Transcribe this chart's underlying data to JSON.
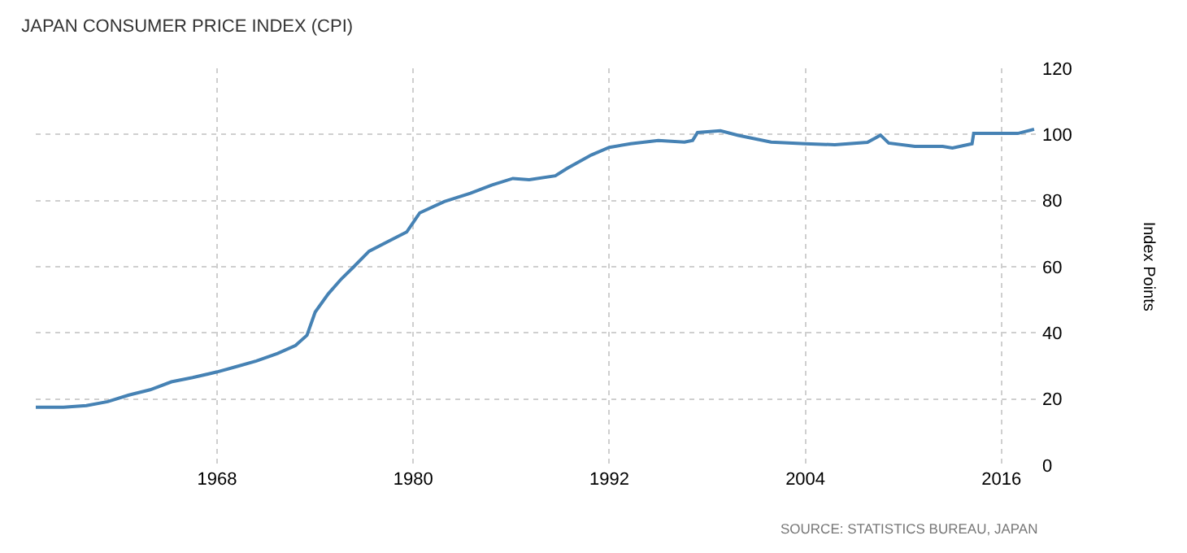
{
  "chart_data": {
    "type": "line",
    "title": "JAPAN CONSUMER PRICE INDEX (CPI)",
    "ylabel": "Index Points",
    "annotations": [
      "SOURCE: STATISTICS BUREAU, JAPAN"
    ],
    "x": [
      1956.9,
      1958.6,
      1960,
      1961.3,
      1962.6,
      1963.9,
      1965.2,
      1966.5,
      1968,
      1969.1,
      1970.4,
      1971.7,
      1972.8,
      1973.5,
      1974,
      1974.8,
      1975.6,
      1976.3,
      1977.3,
      1978.6,
      1979.6,
      1980.4,
      1981.9,
      1983.5,
      1984.8,
      1986.1,
      1987.1,
      1988.7,
      1989.4,
      1990.9,
      1992,
      1993.3,
      1995,
      1996.6,
      1997.1,
      1997.4,
      1998.8,
      1999.9,
      2001.9,
      2004,
      2005.8,
      2007.8,
      2008.6,
      2009.1,
      2010.7,
      2012.4,
      2013,
      2014.2,
      2014.3,
      2016,
      2017,
      2018
    ],
    "series": [
      {
        "color": "#4682b4",
        "values": [
          17.5,
          17.5,
          18,
          19.2,
          21.2,
          22.8,
          25.2,
          26.5,
          28.2,
          29.7,
          31.5,
          33.8,
          36.2,
          39.3,
          46.3,
          51.8,
          56.3,
          59.7,
          64.7,
          68,
          70.5,
          76.3,
          79.7,
          82.2,
          84.7,
          86.7,
          86.3,
          87.5,
          89.7,
          93.8,
          96.1,
          97.2,
          98.2,
          97.7,
          98.2,
          100.6,
          101.1,
          99.7,
          97.7,
          97.2,
          96.9,
          97.6,
          99.8,
          97.4,
          96.4,
          96.4,
          95.9,
          97.2,
          100.3,
          100.3,
          100.3,
          101.6
        ]
      }
    ],
    "xlim": [
      1956.9,
      2018.4
    ],
    "xticks": [
      1968,
      1980,
      1992,
      2004,
      2016
    ],
    "ylim": [
      0,
      120
    ],
    "yticks": [
      0,
      20,
      40,
      60,
      80,
      100,
      120
    ],
    "grid": true,
    "marker": "none",
    "line_style": "solid"
  }
}
